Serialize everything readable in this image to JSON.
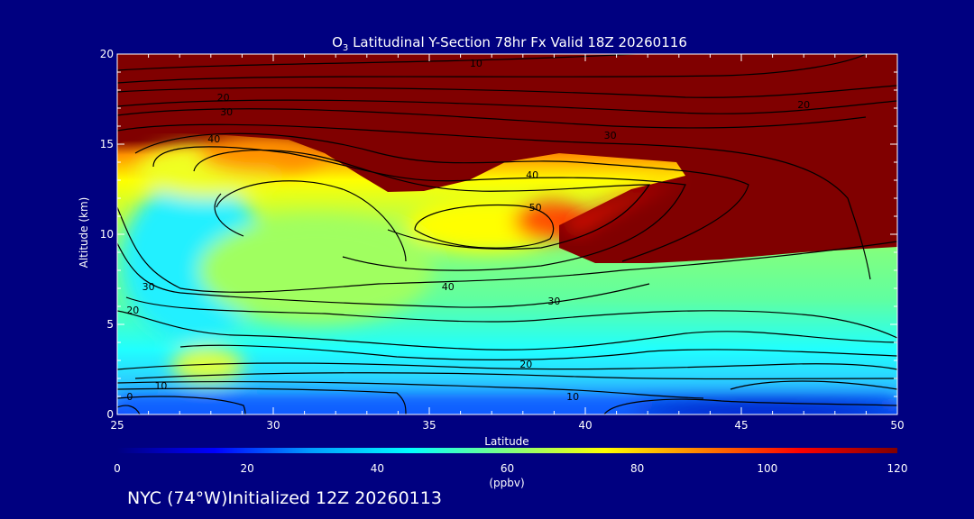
{
  "chart_data": {
    "type": "heatmap",
    "title": {
      "species_sub": "3",
      "rest": " Latitudinal Y-Section 78hr  Fx Valid 18Z 20260116",
      "species_main": "O"
    },
    "xlabel": "Latitude",
    "ylabel": "Altitude (km)",
    "xlim": [
      25,
      50
    ],
    "ylim": [
      0,
      20
    ],
    "xticks": [
      25,
      30,
      35,
      40,
      45,
      50
    ],
    "yticks": [
      0,
      5,
      10,
      15,
      20
    ],
    "colorbar": {
      "range": [
        0,
        120
      ],
      "ticks": [
        0,
        20,
        40,
        60,
        80,
        100,
        120
      ],
      "unit": "(ppbv)",
      "colormap": [
        "#000080",
        "#0000ff",
        "#00a0ff",
        "#00ffff",
        "#80ff80",
        "#ffff00",
        "#ff8000",
        "#ff0000",
        "#800000"
      ]
    },
    "contour_labels": [
      {
        "value": "10",
        "lat": 36.5,
        "alt": 19.5
      },
      {
        "value": "20",
        "lat": 28.4,
        "alt": 17.6
      },
      {
        "value": "30",
        "lat": 28.5,
        "alt": 16.8
      },
      {
        "value": "40",
        "lat": 28.1,
        "alt": 15.3
      },
      {
        "value": "20",
        "lat": 47.0,
        "alt": 17.2
      },
      {
        "value": "30",
        "lat": 40.8,
        "alt": 15.5
      },
      {
        "value": "40",
        "lat": 38.3,
        "alt": 13.3
      },
      {
        "value": "50",
        "lat": 38.4,
        "alt": 11.5
      },
      {
        "value": "40",
        "lat": 35.6,
        "alt": 7.1
      },
      {
        "value": "30",
        "lat": 26.0,
        "alt": 7.1
      },
      {
        "value": "20",
        "lat": 25.5,
        "alt": 5.8
      },
      {
        "value": "30",
        "lat": 39.0,
        "alt": 6.3
      },
      {
        "value": "20",
        "lat": 38.1,
        "alt": 2.8
      },
      {
        "value": "10",
        "lat": 26.4,
        "alt": 1.6
      },
      {
        "value": "0",
        "lat": 25.4,
        "alt": 1.0
      },
      {
        "value": "10",
        "lat": 39.6,
        "alt": 1.0
      }
    ]
  },
  "footer": "NYC (74°W)Initialized 12Z 20260113"
}
